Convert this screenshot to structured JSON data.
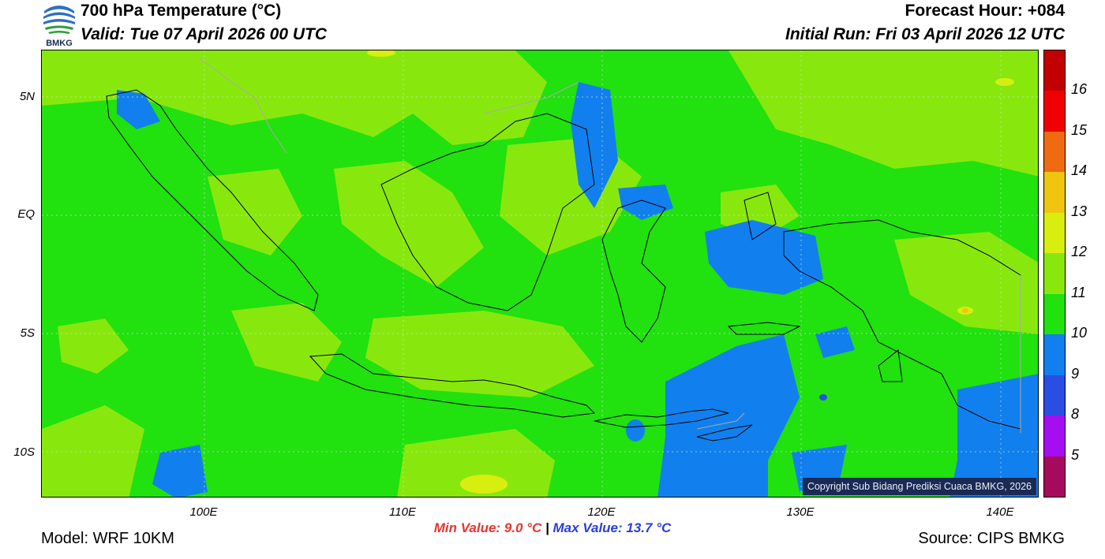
{
  "header": {
    "title": "700 hPa Temperature (°C)",
    "valid": "Valid: Tue 07 April 2026 00 UTC",
    "forecast_hour": "Forecast Hour: +084",
    "initial_run": "Initial Run: Fri 03 April 2026 12 UTC"
  },
  "logo": {
    "text": "BMKG",
    "icon": "bmkg-logo"
  },
  "map": {
    "lat_labels": [
      "5N",
      "EQ",
      "5S",
      "10S"
    ],
    "lon_labels": [
      "100E",
      "110E",
      "120E",
      "130E",
      "140E"
    ],
    "copyright": "Copyright Sub Bidang Prediksi Cuaca BMKG, 2026"
  },
  "colorbar": {
    "labels": [
      "16",
      "15",
      "14",
      "13",
      "12",
      "11",
      "10",
      "9",
      "8",
      "5"
    ],
    "colors": [
      "#c20000",
      "#f00000",
      "#ee6b12",
      "#efc50f",
      "#d8ee0f",
      "#88e80e",
      "#21e10f",
      "#1180ee",
      "#2a4de4",
      "#a40ef0",
      "#a60a5c"
    ]
  },
  "stats": {
    "min": "Min Value: 9.0 °C",
    "separator": "|",
    "max": "Max Value: 13.7 °C"
  },
  "footer": {
    "model": "Model: WRF 10KM",
    "source": "Source: CIPS BMKG"
  }
}
